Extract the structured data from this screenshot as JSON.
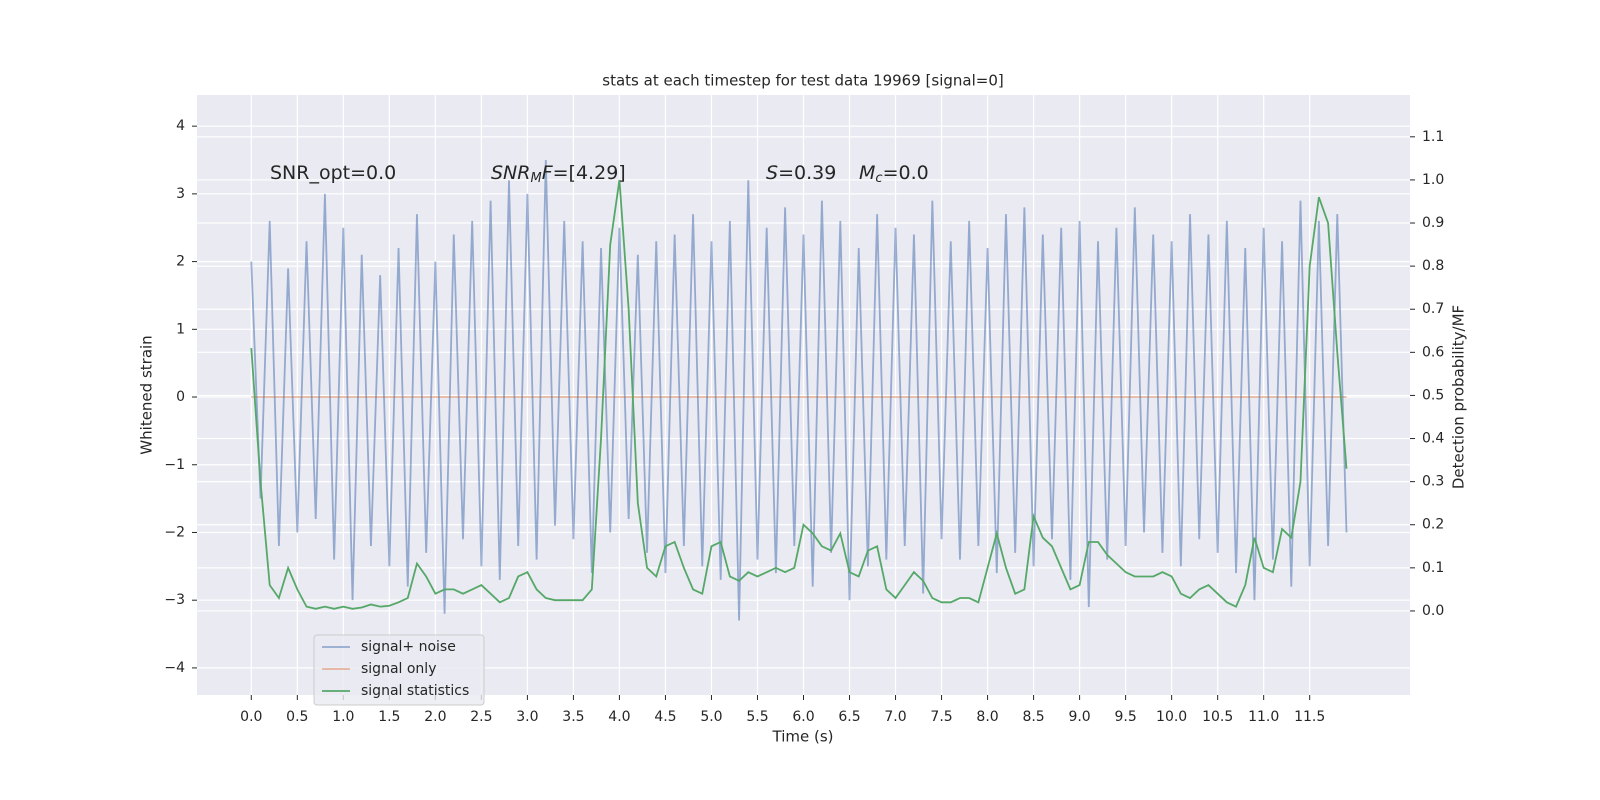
{
  "chart_data": {
    "type": "line",
    "title": "stats at each timestep for test data 19969 [signal=0]",
    "xlabel": "Time (s)",
    "ylabel": "Whitened strain",
    "y2label": "Detection probability/MF",
    "background": "#eaeaf2",
    "grid": true,
    "legend": "lower left",
    "annotations": [
      [
        {
          "text": "SNR_opt=0.0"
        }
      ],
      [
        {
          "text": "SNR",
          "style": "italic"
        },
        {
          "text": "M",
          "style": "sub"
        },
        {
          "text": "F",
          "style": "italic"
        },
        {
          "text": "=[4.29]"
        }
      ],
      [
        {
          "text": "S",
          "style": "italic"
        },
        {
          "text": "=0.39"
        }
      ],
      [
        {
          "text": "M",
          "style": "italic"
        },
        {
          "text": "c",
          "style": "sub"
        },
        {
          "text": "=0.0"
        }
      ]
    ],
    "xlim": [
      -0.59,
      12.59
    ],
    "ylim": [
      -4.4,
      4.46
    ],
    "y2lim": [
      -0.195,
      1.197
    ],
    "xticks": [
      {
        "value": 0,
        "label": "0.0"
      },
      0.5,
      {
        "value": 1,
        "label": "1.0"
      },
      1.5,
      {
        "value": 2,
        "label": "2.0"
      },
      2.5,
      {
        "value": 3,
        "label": "3.0"
      },
      3.5,
      {
        "value": 4,
        "label": "4.0"
      },
      4.5,
      {
        "value": 5,
        "label": "5.0"
      },
      5.5,
      {
        "value": 6,
        "label": "6.0"
      },
      6.5,
      {
        "value": 7,
        "label": "7.0"
      },
      7.5,
      {
        "value": 8,
        "label": "8.0"
      },
      8.5,
      {
        "value": 9,
        "label": "9.0"
      },
      9.5,
      {
        "value": 10,
        "label": "10.0"
      },
      10.5,
      {
        "value": 11,
        "label": "11.0"
      },
      11.5
    ],
    "yticks": [
      {
        "value": -4,
        "label": "−4"
      },
      {
        "value": -3,
        "label": "−3"
      },
      {
        "value": -2,
        "label": "−2"
      },
      {
        "value": -1,
        "label": "−1"
      },
      0,
      1,
      2,
      3,
      4
    ],
    "y2ticks": [
      {
        "value": 0,
        "label": "0.0"
      },
      0.1,
      0.2,
      0.3,
      0.4,
      0.5,
      0.6,
      0.7,
      0.8,
      0.9,
      {
        "value": 1,
        "label": "1.0"
      },
      1.1
    ],
    "x": [
      0,
      0.1,
      0.2,
      0.3,
      0.4,
      0.5,
      0.6,
      0.7,
      0.8,
      0.9,
      1,
      1.1,
      1.2,
      1.3,
      1.4,
      1.5,
      1.6,
      1.7,
      1.8,
      1.9,
      2,
      2.1,
      2.2,
      2.3,
      2.4,
      2.5,
      2.6,
      2.7,
      2.8,
      2.9,
      3,
      3.1,
      3.2,
      3.3,
      3.4,
      3.5,
      3.6,
      3.7,
      3.8,
      3.9,
      4,
      4.1,
      4.2,
      4.3,
      4.4,
      4.5,
      4.6,
      4.7,
      4.8,
      4.9,
      5,
      5.1,
      5.2,
      5.3,
      5.4,
      5.5,
      5.6,
      5.7,
      5.8,
      5.9,
      6,
      6.1,
      6.2,
      6.3,
      6.4,
      6.5,
      6.6,
      6.7,
      6.8,
      6.9,
      7,
      7.1,
      7.2,
      7.3,
      7.4,
      7.5,
      7.6,
      7.7,
      7.8,
      7.9,
      8,
      8.1,
      8.2,
      8.3,
      8.4,
      8.5,
      8.6,
      8.7,
      8.8,
      8.9,
      9,
      9.1,
      9.2,
      9.3,
      9.4,
      9.5,
      9.6,
      9.7,
      9.8,
      9.9,
      10,
      10.1,
      10.2,
      10.3,
      10.4,
      10.5,
      10.6,
      10.7,
      10.8,
      10.9,
      11,
      11.1,
      11.2,
      11.3,
      11.4,
      11.5,
      11.6,
      11.7,
      11.8,
      11.9
    ],
    "series": [
      {
        "name": "signal+ noise",
        "color": "#4c72b0",
        "opacity": 0.55,
        "values": [
          2.0,
          -1.5,
          2.6,
          -2.2,
          1.9,
          -2.0,
          2.3,
          -1.8,
          3.0,
          -2.4,
          2.5,
          -3.0,
          2.1,
          -2.2,
          1.8,
          -2.5,
          2.2,
          -2.8,
          2.7,
          -2.3,
          2.0,
          -3.2,
          2.4,
          -2.1,
          2.6,
          -2.5,
          2.9,
          -2.7,
          3.2,
          -2.2,
          3.0,
          -2.4,
          3.5,
          -1.9,
          2.6,
          -2.1,
          2.3,
          -2.6,
          2.2,
          -2.0,
          2.5,
          -1.8,
          2.1,
          -2.3,
          2.3,
          -2.6,
          2.4,
          -2.2,
          2.7,
          -2.5,
          2.3,
          -2.7,
          2.6,
          -3.3,
          3.2,
          -2.4,
          2.5,
          -2.6,
          2.8,
          -2.2,
          2.4,
          -2.8,
          2.9,
          -2.3,
          2.6,
          -3.0,
          2.2,
          -2.5,
          2.7,
          -2.4,
          2.5,
          -2.2,
          2.4,
          -2.9,
          2.9,
          -2.1,
          2.3,
          -2.4,
          2.6,
          -2.2,
          2.2,
          -2.6,
          2.7,
          -2.3,
          2.8,
          -2.5,
          2.4,
          -2.1,
          2.5,
          -2.7,
          2.6,
          -3.1,
          2.3,
          -2.4,
          2.5,
          -2.2,
          2.8,
          -2.0,
          2.4,
          -2.3,
          2.3,
          -2.5,
          2.7,
          -2.1,
          2.4,
          -2.3,
          2.6,
          -2.6,
          2.2,
          -3.0,
          2.5,
          -2.4,
          2.3,
          -2.8,
          2.9,
          -2.5,
          2.6,
          -2.2,
          2.7,
          -2.0
        ]
      },
      {
        "name": "signal only",
        "color": "#dd8452",
        "opacity": 0.55,
        "values": [
          0,
          0,
          0,
          0,
          0,
          0,
          0,
          0,
          0,
          0,
          0,
          0,
          0,
          0,
          0,
          0,
          0,
          0,
          0,
          0,
          0,
          0,
          0,
          0,
          0,
          0,
          0,
          0,
          0,
          0,
          0,
          0,
          0,
          0,
          0,
          0,
          0,
          0,
          0,
          0,
          0,
          0,
          0,
          0,
          0,
          0,
          0,
          0,
          0,
          0,
          0,
          0,
          0,
          0,
          0,
          0,
          0,
          0,
          0,
          0,
          0,
          0,
          0,
          0,
          0,
          0,
          0,
          0,
          0,
          0,
          0,
          0,
          0,
          0,
          0,
          0,
          0,
          0,
          0,
          0,
          0,
          0,
          0,
          0,
          0,
          0,
          0,
          0,
          0,
          0,
          0,
          0,
          0,
          0,
          0,
          0,
          0,
          0,
          0,
          0,
          0,
          0,
          0,
          0,
          0,
          0,
          0,
          0,
          0,
          0,
          0,
          0,
          0,
          0,
          0,
          0,
          0,
          0,
          0,
          0
        ]
      },
      {
        "name": "signal statistics",
        "color": "#55a868",
        "opacity": 1,
        "axis": "y2",
        "values": [
          0.61,
          0.3,
          0.06,
          0.03,
          0.1,
          0.05,
          0.01,
          0.005,
          0.01,
          0.005,
          0.01,
          0.005,
          0.008,
          0.015,
          0.01,
          0.012,
          0.02,
          0.03,
          0.11,
          0.08,
          0.04,
          0.05,
          0.05,
          0.04,
          0.05,
          0.06,
          0.04,
          0.02,
          0.03,
          0.08,
          0.09,
          0.05,
          0.03,
          0.025,
          0.025,
          0.025,
          0.025,
          0.05,
          0.4,
          0.85,
          1.0,
          0.7,
          0.25,
          0.1,
          0.08,
          0.15,
          0.16,
          0.1,
          0.05,
          0.04,
          0.15,
          0.16,
          0.08,
          0.07,
          0.09,
          0.08,
          0.09,
          0.1,
          0.09,
          0.1,
          0.2,
          0.18,
          0.15,
          0.14,
          0.18,
          0.09,
          0.08,
          0.14,
          0.15,
          0.05,
          0.03,
          0.06,
          0.09,
          0.07,
          0.03,
          0.02,
          0.02,
          0.03,
          0.03,
          0.02,
          0.1,
          0.18,
          0.1,
          0.04,
          0.05,
          0.22,
          0.17,
          0.15,
          0.1,
          0.05,
          0.06,
          0.16,
          0.16,
          0.13,
          0.11,
          0.09,
          0.08,
          0.08,
          0.08,
          0.09,
          0.08,
          0.04,
          0.03,
          0.05,
          0.06,
          0.04,
          0.02,
          0.01,
          0.06,
          0.17,
          0.1,
          0.09,
          0.19,
          0.17,
          0.3,
          0.8,
          0.96,
          0.9,
          0.6,
          0.33
        ]
      }
    ]
  }
}
